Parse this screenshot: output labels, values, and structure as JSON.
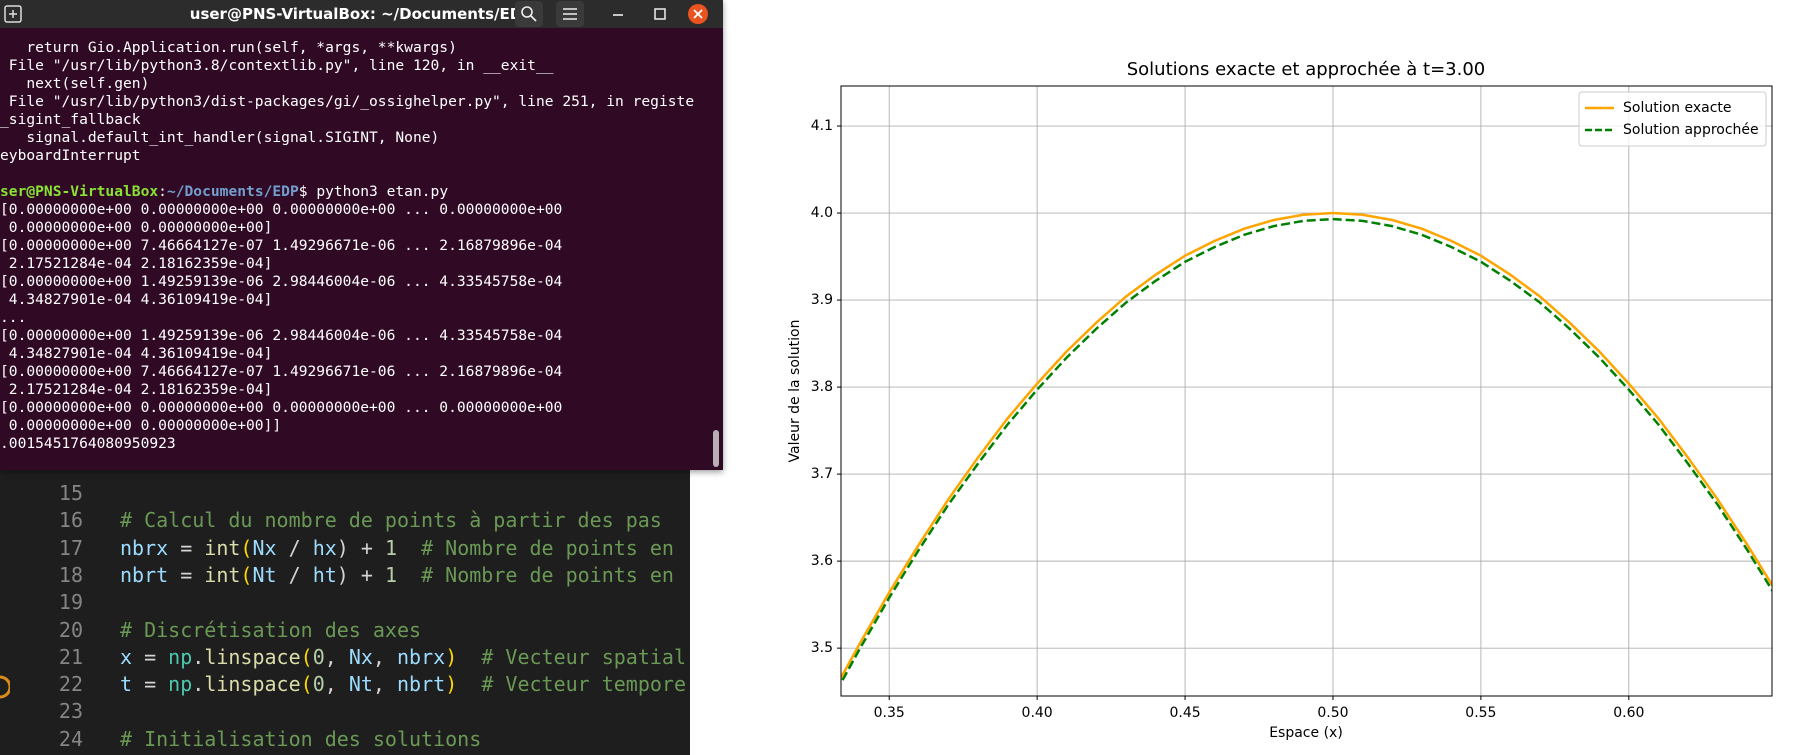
{
  "terminal": {
    "title": "user@PNS-VirtualBox: ~/Documents/EDP",
    "lines_before": [
      "   return Gio.Application.run(self, *args, **kwargs)",
      " File \"/usr/lib/python3.8/contextlib.py\", line 120, in __exit__",
      "   next(self.gen)",
      " File \"/usr/lib/python3/dist-packages/gi/_ossighelper.py\", line 251, in registe",
      "_sigint_fallback",
      "   signal.default_int_handler(signal.SIGINT, None)",
      "eyboardInterrupt"
    ],
    "prompt": {
      "user": "ser@PNS-VirtualBox",
      "separator": ":",
      "path": "~/Documents/EDP",
      "command": "$ python3 etan.py"
    },
    "lines_after": [
      "[0.00000000e+00 0.00000000e+00 0.00000000e+00 ... 0.00000000e+00",
      " 0.00000000e+00 0.00000000e+00]",
      "[0.00000000e+00 7.46664127e-07 1.49296671e-06 ... 2.16879896e-04",
      " 2.17521284e-04 2.18162359e-04]",
      "[0.00000000e+00 1.49259139e-06 2.98446004e-06 ... 4.33545758e-04",
      " 4.34827901e-04 4.36109419e-04]",
      "...",
      "[0.00000000e+00 1.49259139e-06 2.98446004e-06 ... 4.33545758e-04",
      " 4.34827901e-04 4.36109419e-04]",
      "[0.00000000e+00 7.46664127e-07 1.49296671e-06 ... 2.16879896e-04",
      " 2.17521284e-04 2.18162359e-04]",
      "[0.00000000e+00 0.00000000e+00 0.00000000e+00 ... 0.00000000e+00",
      " 0.00000000e+00 0.00000000e+00]]",
      ".0015451764080950923"
    ]
  },
  "editor": {
    "lines": [
      {
        "number": 15,
        "tokens": []
      },
      {
        "number": 16,
        "tokens": [
          "# Calcul du nombre de points à partir des pas"
        ]
      },
      {
        "number": 17,
        "tokens": [
          "nbrx",
          " = ",
          "int",
          "(",
          "Nx",
          " / ",
          "hx",
          ") + ",
          "1",
          "  # Nombre de points en"
        ]
      },
      {
        "number": 18,
        "tokens": [
          "nbrt",
          " = ",
          "int",
          "(",
          "Nt",
          " / ",
          "ht",
          ") + ",
          "1",
          "  # Nombre de points en"
        ]
      },
      {
        "number": 19,
        "tokens": []
      },
      {
        "number": 20,
        "tokens": [
          "# Discrétisation des axes"
        ]
      },
      {
        "number": 21,
        "tokens": [
          "x",
          " = ",
          "np",
          ".",
          "linspace",
          "(",
          "0",
          ", ",
          "Nx",
          ", ",
          "nbrx",
          ")",
          "  # Vecteur spatial"
        ]
      },
      {
        "number": 22,
        "tokens": [
          "t",
          " = ",
          "np",
          ".",
          "linspace",
          "(",
          "0",
          ", ",
          "Nt",
          ", ",
          "nbrt",
          ")",
          "  # Vecteur tempore"
        ]
      },
      {
        "number": 23,
        "tokens": []
      },
      {
        "number": 24,
        "tokens": [
          "# Initialisation des solutions"
        ]
      }
    ]
  },
  "chart_data": {
    "type": "line",
    "title": "Solutions exacte et approchée à t=3.00",
    "x_label": "Espace (x)",
    "y_label": "Valeur de la solution",
    "x": [
      0.33,
      0.34,
      0.35,
      0.36,
      0.37,
      0.38,
      0.39,
      0.4,
      0.41,
      0.42,
      0.43,
      0.44,
      0.45,
      0.46,
      0.47,
      0.48,
      0.49,
      0.5,
      0.51,
      0.52,
      0.53,
      0.54,
      0.55,
      0.56,
      0.57,
      0.58,
      0.59,
      0.6,
      0.61,
      0.62,
      0.63,
      0.64,
      0.65
    ],
    "series": [
      {
        "name": "Solution exacte",
        "color": "#ffa500",
        "line_style": "solid",
        "values": [
          3.443,
          3.505,
          3.564,
          3.619,
          3.671,
          3.719,
          3.764,
          3.804,
          3.841,
          3.874,
          3.904,
          3.929,
          3.951,
          3.968,
          3.982,
          3.992,
          3.998,
          4.0,
          3.998,
          3.992,
          3.982,
          3.968,
          3.951,
          3.929,
          3.904,
          3.874,
          3.841,
          3.804,
          3.764,
          3.719,
          3.671,
          3.619,
          3.564
        ]
      },
      {
        "name": "Solution approchée",
        "color": "#008000",
        "line_style": "dashed",
        "values": [
          3.437,
          3.499,
          3.558,
          3.613,
          3.665,
          3.712,
          3.757,
          3.797,
          3.834,
          3.867,
          3.897,
          3.922,
          3.944,
          3.961,
          3.975,
          3.985,
          3.991,
          3.993,
          3.991,
          3.985,
          3.975,
          3.961,
          3.944,
          3.922,
          3.897,
          3.867,
          3.834,
          3.797,
          3.757,
          3.712,
          3.665,
          3.613,
          3.558
        ]
      }
    ],
    "xlim": [
      0.3337,
      0.6484
    ],
    "ylim": [
      3.445,
      4.146
    ],
    "xticks": [
      0.35,
      {
        "value": 0.4,
        "label": "0.40"
      },
      0.45,
      {
        "value": 0.5,
        "label": "0.50"
      },
      0.55,
      {
        "value": 0.6,
        "label": "0.60"
      }
    ],
    "yticks": [
      3.5,
      3.6,
      3.7,
      3.8,
      3.9,
      {
        "value": 4,
        "label": "4.0"
      },
      4.1
    ],
    "grid": true,
    "legend": "upper-right"
  }
}
